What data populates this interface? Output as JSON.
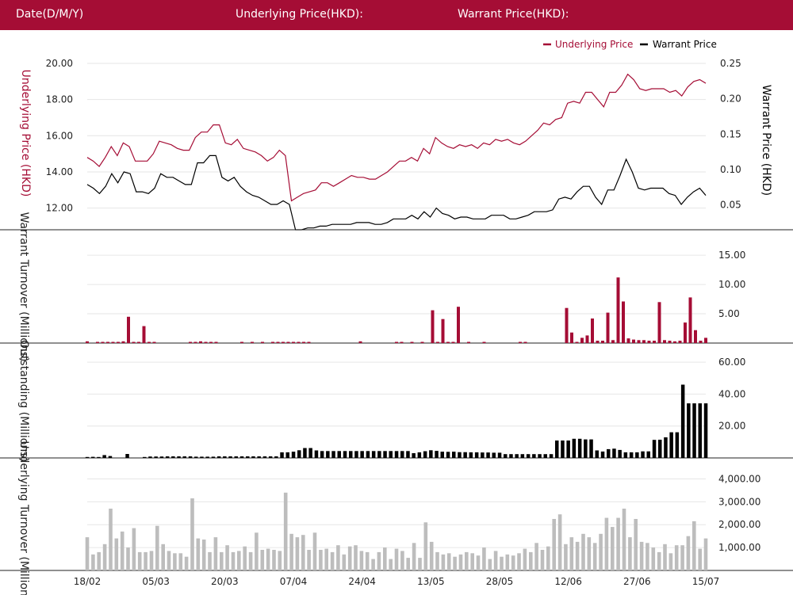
{
  "header": {
    "date_label": "Date(D/M/Y)",
    "underlying_label": "Underlying Price(HKD):",
    "warrant_label": "Warrant Price(HKD):"
  },
  "colors": {
    "header_bg": "#a50d35",
    "underlying": "#a50d35",
    "warrant": "#000000",
    "turnover": "#bdbdbd"
  },
  "chart_data": [
    {
      "type": "line",
      "legend": [
        "Underlying Price",
        "Warrant Price"
      ],
      "legend_position": "top-right",
      "ylabel_left": "Underlying Price (HKD)",
      "ylabel_right": "Warrant  Price (HKD)",
      "ylim_left": [
        10.8,
        20.0
      ],
      "ylim_right": [
        0.015,
        0.25
      ],
      "yticks_left": [
        "12.00",
        "14.00",
        "16.00",
        "18.00",
        "20.00"
      ],
      "yticks_right": [
        "0.05",
        "0.10",
        "0.15",
        "0.20",
        "0.25"
      ],
      "series": [
        {
          "name": "Underlying Price",
          "axis": "left",
          "values": [
            14.8,
            14.6,
            14.3,
            14.8,
            15.4,
            14.9,
            15.6,
            15.4,
            14.6,
            14.6,
            14.6,
            15.0,
            15.7,
            15.6,
            15.5,
            15.3,
            15.2,
            15.2,
            15.9,
            16.2,
            16.2,
            16.6,
            16.6,
            15.6,
            15.5,
            15.8,
            15.3,
            15.2,
            15.1,
            14.9,
            14.6,
            14.8,
            15.2,
            14.9,
            12.4,
            12.6,
            12.8,
            12.9,
            13.0,
            13.4,
            13.4,
            13.2,
            13.4,
            13.6,
            13.8,
            13.7,
            13.7,
            13.6,
            13.6,
            13.8,
            14.0,
            14.3,
            14.6,
            14.6,
            14.8,
            14.6,
            15.3,
            15.0,
            15.9,
            15.6,
            15.4,
            15.3,
            15.5,
            15.4,
            15.5,
            15.3,
            15.6,
            15.5,
            15.8,
            15.7,
            15.8,
            15.6,
            15.5,
            15.7,
            16.0,
            16.3,
            16.7,
            16.6,
            16.9,
            17.0,
            17.8,
            17.9,
            17.8,
            18.4,
            18.4,
            18.0,
            17.6,
            18.4,
            18.4,
            18.8,
            19.4,
            19.1,
            18.6,
            18.5,
            18.6,
            18.6,
            18.6,
            18.4,
            18.5,
            18.2,
            18.7,
            19.0,
            19.1,
            18.9
          ]
        },
        {
          "name": "Warrant Price",
          "axis": "left",
          "values": [
            13.3,
            13.1,
            12.8,
            13.2,
            13.9,
            13.4,
            14.0,
            13.9,
            12.9,
            12.9,
            12.8,
            13.1,
            13.9,
            13.7,
            13.7,
            13.5,
            13.3,
            13.3,
            14.5,
            14.5,
            14.9,
            14.9,
            13.7,
            13.5,
            13.7,
            13.2,
            12.9,
            12.7,
            12.6,
            12.4,
            12.2,
            12.2,
            12.4,
            12.2,
            10.8,
            10.8,
            10.9,
            10.9,
            11.0,
            11.0,
            11.1,
            11.1,
            11.1,
            11.1,
            11.2,
            11.2,
            11.2,
            11.1,
            11.1,
            11.2,
            11.4,
            11.4,
            11.4,
            11.6,
            11.4,
            11.8,
            11.5,
            12.0,
            11.7,
            11.6,
            11.4,
            11.5,
            11.5,
            11.4,
            11.4,
            11.4,
            11.6,
            11.6,
            11.6,
            11.4,
            11.4,
            11.5,
            11.6,
            11.8,
            11.8,
            11.8,
            11.9,
            12.5,
            12.6,
            12.5,
            12.9,
            13.2,
            13.2,
            12.6,
            12.2,
            13.0,
            13.0,
            13.8,
            14.7,
            14.0,
            13.1,
            13.0,
            13.1,
            13.1,
            13.1,
            12.8,
            12.7,
            12.2,
            12.6,
            12.9,
            13.1,
            12.7
          ]
        }
      ]
    },
    {
      "type": "bar",
      "ylabel": "Warrant  Turnover (Millions)",
      "ylim": [
        0,
        18
      ],
      "yticks": [
        "5.00",
        "10.00",
        "15.00"
      ],
      "values": [
        0.3,
        0,
        0.2,
        0.2,
        0.2,
        0.2,
        0.2,
        0.3,
        4.5,
        0.2,
        0.2,
        2.9,
        0.2,
        0.2,
        0,
        0,
        0,
        0,
        0,
        0,
        0.2,
        0.2,
        0.3,
        0.2,
        0.2,
        0.2,
        0,
        0,
        0,
        0,
        0.2,
        0,
        0.2,
        0,
        0.2,
        0,
        0.2,
        0.2,
        0.2,
        0.2,
        0.2,
        0.2,
        0.2,
        0.2,
        0,
        0,
        0,
        0,
        0,
        0,
        0,
        0,
        0,
        0.3,
        0,
        0,
        0,
        0,
        0,
        0,
        0.2,
        0.2,
        0,
        0.2,
        0,
        0.2,
        0,
        5.6,
        0.2,
        4.1,
        0.2,
        0.2,
        6.2,
        0,
        0.2,
        0,
        0,
        0.2,
        0,
        0,
        0,
        0,
        0,
        0,
        0.2,
        0.2,
        0,
        0,
        0,
        0,
        0,
        0,
        0,
        6.0,
        1.8,
        0.2,
        0.9,
        1.3,
        4.2,
        0.4,
        0.4,
        5.2,
        0.5,
        11.2,
        7.1,
        0.8,
        0.6,
        0.5,
        0.5,
        0.4,
        0.4,
        7.0,
        0.5,
        0.4,
        0.3,
        0.4,
        3.5,
        7.8,
        2.2,
        0.4,
        0.9
      ]
    },
    {
      "type": "bar",
      "ylabel": "Outstanding (Millions)",
      "ylim": [
        0,
        66
      ],
      "yticks": [
        "20.00",
        "40.00",
        "60.00"
      ],
      "values": [
        0.6,
        0.7,
        0.6,
        1.8,
        1.2,
        0,
        0,
        2.5,
        0,
        0,
        0.6,
        0.9,
        0.9,
        0.9,
        1.0,
        1.0,
        1.0,
        1.0,
        1.0,
        0.8,
        0.8,
        0.8,
        0.8,
        1.0,
        1.0,
        1.0,
        1.0,
        1.0,
        1.0,
        1.0,
        1.0,
        1.0,
        1.0,
        1.0,
        3.5,
        3.5,
        3.9,
        4.8,
        6.2,
        6.2,
        4.7,
        4.3,
        4.3,
        4.3,
        4.3,
        4.3,
        4.3,
        4.3,
        4.3,
        4.3,
        4.3,
        4.3,
        4.3,
        4.3,
        4.3,
        4.3,
        4.3,
        3.0,
        3.5,
        4.2,
        4.8,
        4.4,
        3.9,
        3.8,
        3.9,
        3.6,
        3.6,
        3.5,
        3.5,
        3.4,
        3.4,
        3.3,
        3.3,
        2.4,
        2.4,
        2.4,
        2.4,
        2.4,
        2.4,
        2.4,
        2.4,
        2.4,
        10.9,
        10.9,
        10.9,
        12.0,
        12.0,
        11.6,
        11.6,
        4.7,
        4.0,
        5.5,
        5.8,
        5.0,
        3.5,
        3.5,
        3.5,
        4.1,
        4.1,
        11.3,
        11.4,
        12.9,
        16.1,
        16.1,
        45.9,
        34.2,
        34.2,
        34.2,
        34.2
      ]
    },
    {
      "type": "bar",
      "ylabel": "Underlying Turnover (Millions)",
      "ylim": [
        0,
        4500
      ],
      "yticks": [
        "1,000.00",
        "2,000.00",
        "3,000.00",
        "4,000.00"
      ],
      "x_ticks": [
        "18/02",
        "05/03",
        "20/03",
        "07/04",
        "24/04",
        "13/05",
        "28/05",
        "12/06",
        "27/06",
        "15/07"
      ],
      "values": [
        1450,
        700,
        800,
        1150,
        2700,
        1400,
        1700,
        1000,
        1850,
        800,
        800,
        850,
        1950,
        1150,
        850,
        750,
        750,
        600,
        3150,
        1400,
        1350,
        800,
        1450,
        800,
        1100,
        800,
        850,
        1050,
        800,
        1650,
        900,
        950,
        900,
        850,
        3400,
        1600,
        1450,
        1550,
        900,
        1650,
        900,
        950,
        800,
        1100,
        700,
        1050,
        1100,
        850,
        800,
        500,
        800,
        1000,
        500,
        950,
        850,
        550,
        1200,
        550,
        2100,
        1250,
        800,
        700,
        750,
        600,
        700,
        800,
        750,
        650,
        1000,
        500,
        850,
        600,
        700,
        650,
        750,
        950,
        800,
        1200,
        900,
        1050,
        2250,
        2450,
        1150,
        1450,
        1250,
        1600,
        1450,
        1200,
        1600,
        2300,
        1900,
        2300,
        2700,
        1450,
        2250,
        1250,
        1200,
        1000,
        800,
        1150,
        750,
        1100,
        1100,
        1500,
        2150,
        950,
        1400
      ]
    }
  ]
}
